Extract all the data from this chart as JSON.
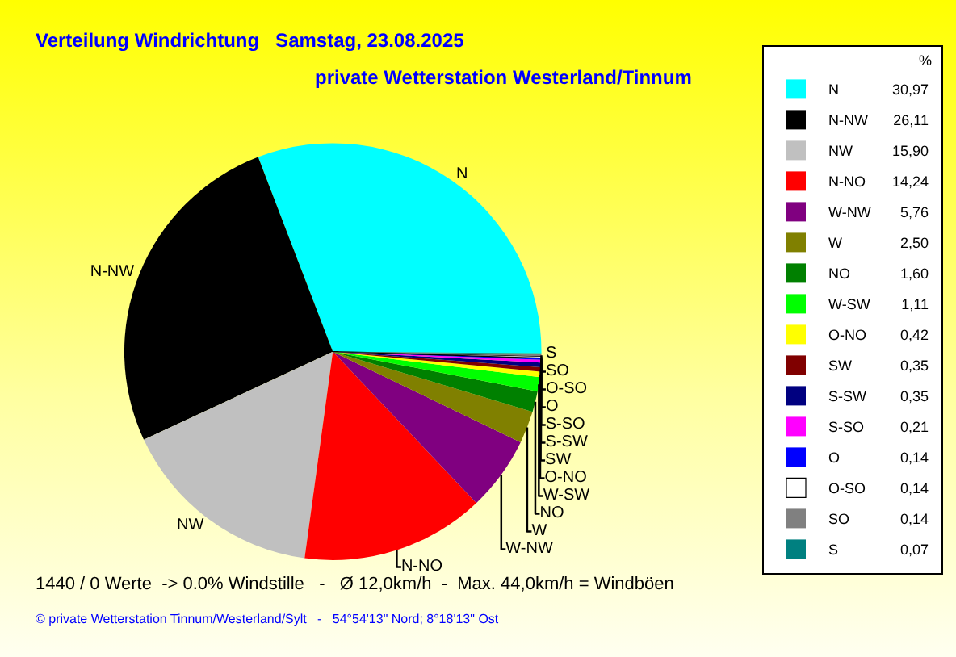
{
  "chart_data": {
    "type": "pie",
    "title": "Verteilung Windrichtung   Samstag, 23.08.2025",
    "subtitle": "private Wetterstation Westerland/Tinnum",
    "categories": [
      "N",
      "N-NW",
      "NW",
      "N-NO",
      "W-NW",
      "W",
      "NO",
      "W-SW",
      "O-NO",
      "SW",
      "S-SW",
      "S-SO",
      "O",
      "O-SO",
      "SO",
      "S"
    ],
    "values": [
      30.97,
      26.11,
      15.9,
      14.24,
      5.76,
      2.5,
      1.6,
      1.11,
      0.42,
      0.35,
      0.35,
      0.21,
      0.14,
      0.14,
      0.14,
      0.07
    ],
    "value_labels": [
      "30,97",
      "26,11",
      "15,90",
      "14,24",
      "5,76",
      "2,50",
      "1,60",
      "1,11",
      "0,42",
      "0,35",
      "0,35",
      "0,21",
      "0,14",
      "0,14",
      "0,14",
      "0,07"
    ],
    "colors": [
      "#00ffff",
      "#000000",
      "#c0c0c0",
      "#ff0000",
      "#800080",
      "#808000",
      "#008000",
      "#00ff00",
      "#ffff00",
      "#800000",
      "#000080",
      "#ff00ff",
      "#0000ff",
      "#ffffff",
      "#808080",
      "#008080"
    ],
    "legend": "right",
    "legend_title": "%",
    "annotations": [
      "1440 / 0 Werte  -> 0.0% Windstille   -   Ø 12,0km/h  -  Max. 44,0km/h = Windböen",
      "© private Wetterstation Tinnum/Westerland/Sylt   -   54°54'13\" Nord; 8°18'13\" Ost"
    ]
  }
}
